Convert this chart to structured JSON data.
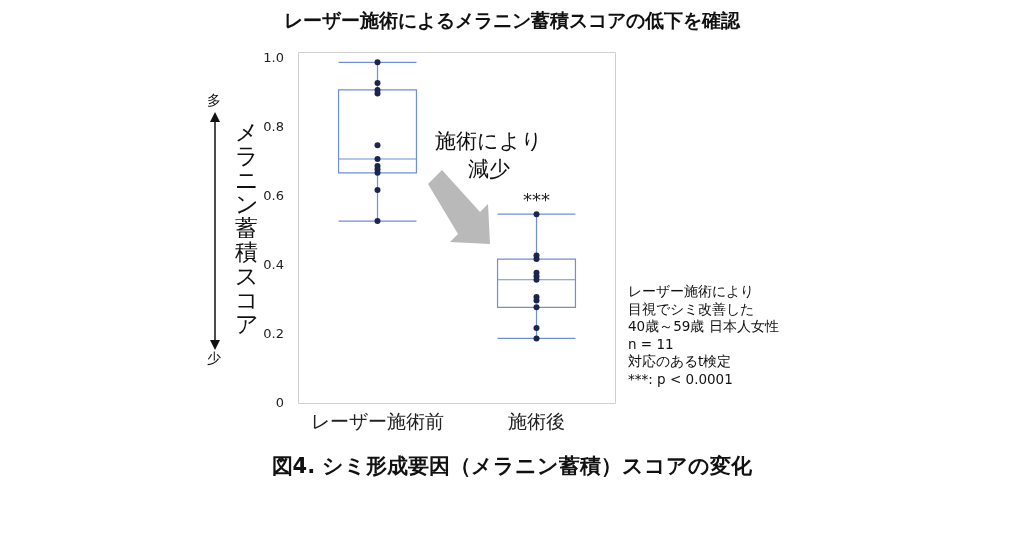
{
  "chart_data": {
    "type": "box",
    "title": "レーザー施術によるメラニン蓄積スコアの低下を確認",
    "ylabel": "メラニン蓄積スコア",
    "categories": [
      "レーザー施術前",
      "施術後"
    ],
    "series": [
      {
        "type": "box",
        "color": "#6f8fdc",
        "boxes": [
          {
            "low": 0.53,
            "q1": 0.67,
            "median": 0.71,
            "q3": 0.91,
            "high": 0.99
          },
          {
            "low": 0.19,
            "q1": 0.28,
            "median": 0.36,
            "q3": 0.42,
            "high": 0.55
          }
        ]
      },
      {
        "type": "scatter",
        "color": "#1b2550",
        "x": [
          "レーザー施術前",
          "レーザー施術前",
          "レーザー施術前",
          "レーザー施術前",
          "レーザー施術前",
          "レーザー施術前",
          "レーザー施術前",
          "レーザー施術前",
          "レーザー施術前",
          "レーザー施術前",
          "レーザー施術前"
        ],
        "values": [
          0.99,
          0.93,
          0.91,
          0.9,
          0.75,
          0.71,
          0.69,
          0.68,
          0.67,
          0.62,
          0.53
        ]
      },
      {
        "type": "scatter",
        "color": "#1b2550",
        "x": [
          "施術後",
          "施術後",
          "施術後",
          "施術後",
          "施術後",
          "施術後",
          "施術後",
          "施術後",
          "施術後",
          "施術後",
          "施術後"
        ],
        "values": [
          0.55,
          0.43,
          0.42,
          0.38,
          0.37,
          0.36,
          0.31,
          0.3,
          0.28,
          0.22,
          0.19
        ]
      }
    ],
    "ylim": [
      0,
      1.02
    ],
    "yticks": [
      0,
      {
        "value": 0.2,
        "label": "0.2"
      },
      {
        "value": 0.4,
        "label": "0.4"
      },
      {
        "value": 0.6,
        "label": "0.6"
      },
      {
        "value": 0.8,
        "label": "0.8"
      },
      {
        "value": 1,
        "label": "1.0"
      }
    ],
    "grid": false,
    "legend": false,
    "marker": "circle",
    "annotations": [
      {
        "text": "***",
        "x": "施術後",
        "y": 0.55
      },
      "施術により減少",
      "多",
      "少",
      "レーザー施術により",
      "目視でシミ改善した",
      "40歳～59歳 日本人女性",
      "n = 11",
      "対応のあるt検定",
      "***: p < 0.0001",
      "図4. シミ形成要因（メラニン蓄積）スコアの変化"
    ]
  }
}
